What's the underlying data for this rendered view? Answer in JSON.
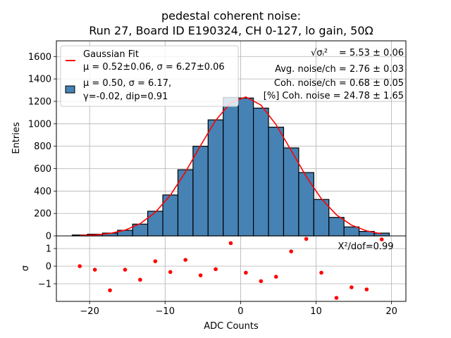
{
  "chart_data": [
    {
      "type": "bar",
      "title_line1": "pedestal coherent noise:",
      "title_line2": "Run 27, Board ID E190324, CH 0-127, lo gain, 50Ω",
      "xlabel": "ADC Counts",
      "ylabel": "Entries",
      "xlim": [
        -24.4,
        21.9
      ],
      "ylim": [
        0,
        1740
      ],
      "grid": true,
      "xticks": [
        -20,
        -10,
        0,
        10,
        20
      ],
      "xtick_labels": [
        "−20",
        "−10",
        "0",
        "10",
        "20"
      ],
      "yticks": [
        0,
        200,
        400,
        600,
        800,
        1000,
        1200,
        1400,
        1600
      ],
      "ytick_labels": [
        "0",
        "200",
        "400",
        "600",
        "800",
        "1000",
        "1200",
        "1400",
        "1600"
      ],
      "bin_width": 2,
      "bin_centers": [
        -21.3,
        -19.3,
        -17.3,
        -15.3,
        -13.3,
        -11.3,
        -9.3,
        -7.3,
        -5.3,
        -3.3,
        -1.3,
        0.7,
        2.7,
        4.7,
        6.7,
        8.7,
        10.7,
        12.7,
        14.7,
        16.7,
        18.7
      ],
      "series": [
        {
          "name": "Histogram",
          "kind": "hist",
          "color": "#4682b4",
          "edgecolor": "#000000",
          "values": [
            8,
            15,
            25,
            50,
            105,
            220,
            365,
            590,
            800,
            1035,
            1235,
            1230,
            1140,
            970,
            785,
            565,
            325,
            165,
            80,
            40,
            25
          ]
        },
        {
          "name": "Gaussian Fit",
          "kind": "line",
          "color": "#ff0000",
          "mu": 0.52,
          "sigma": 6.27,
          "amplitude": 1240
        }
      ],
      "legend": {
        "position": "top-left",
        "entries": [
          {
            "label_line1": "Gaussian Fit",
            "label_line2": "μ = 0.52±0.06, σ = 6.27±0.06",
            "marker": "line",
            "color": "#ff0000"
          },
          {
            "label_line1": "μ = 0.50, σ = 6.17,",
            "label_line2": "γ=-0.02, dip=0.91",
            "marker": "patch",
            "color": "#4682b4"
          }
        ]
      },
      "annotations": [
        {
          "text": "= 5.53 ± 0.06",
          "prefix": "√σᵢ²"
        },
        {
          "text": "Avg. noise/ch = 2.76 ± 0.03"
        },
        {
          "text": "Coh. noise/ch = 0.68 ± 0.05"
        },
        {
          "text": "[%] Coh. noise = 24.78  ± 1.65"
        }
      ]
    },
    {
      "type": "scatter",
      "title": "",
      "xlabel": "ADC Counts",
      "ylabel": "σ",
      "xlim": [
        -24.4,
        21.9
      ],
      "ylim": [
        -2.0,
        1.72
      ],
      "grid": true,
      "yticks": [
        1,
        0,
        -1
      ],
      "ytick_labels": [
        "1",
        "0",
        "−1"
      ],
      "x": [
        -21.3,
        -19.3,
        -17.3,
        -15.3,
        -13.3,
        -11.3,
        -9.3,
        -7.3,
        -5.3,
        -3.3,
        -1.3,
        0.7,
        2.7,
        4.7,
        6.7,
        8.7,
        10.7,
        12.7,
        14.7,
        16.7,
        18.7
      ],
      "y": [
        0.0,
        -0.2,
        -1.37,
        -0.2,
        -0.77,
        0.28,
        -0.33,
        0.36,
        -0.52,
        -0.17,
        1.31,
        -0.37,
        -0.85,
        -0.6,
        0.84,
        1.55,
        -0.37,
        -1.8,
        -1.2,
        -1.32,
        1.52
      ],
      "color": "#ff0000",
      "annotation": "X²/dof=0.99"
    }
  ]
}
